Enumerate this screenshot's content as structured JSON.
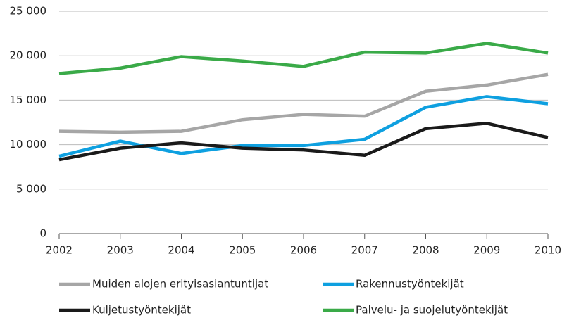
{
  "chart_data": {
    "type": "line",
    "x": [
      2002,
      2003,
      2004,
      2005,
      2006,
      2007,
      2008,
      2009,
      2010
    ],
    "xlim": [
      2002,
      2010
    ],
    "xticks": [
      2002,
      2003,
      2004,
      2005,
      2006,
      2007,
      2008,
      2009,
      2010
    ],
    "ylim": [
      0,
      25000
    ],
    "yticks": [
      0,
      {
        "value": 5000,
        "label": "5 000"
      },
      {
        "value": 10000,
        "label": "10 000"
      },
      {
        "value": 15000,
        "label": "15 000"
      },
      {
        "value": 20000,
        "label": "20 000"
      },
      {
        "value": 25000,
        "label": "25 000"
      }
    ],
    "grid": true,
    "legend": "bottom",
    "series": [
      {
        "name": "Muiden alojen erityisasiantuntijat",
        "color": "#a6a6a6",
        "values": [
          11500,
          11400,
          11500,
          12800,
          13400,
          13200,
          16000,
          16700,
          17900
        ]
      },
      {
        "name": "Rakennustyöntekijät",
        "color": "#0ea0e0",
        "values": [
          8700,
          10400,
          9000,
          9900,
          9900,
          10600,
          14200,
          15400,
          14600
        ]
      },
      {
        "name": "Kuljetustyöntekijät",
        "color": "#1a1a1a",
        "values": [
          8300,
          9600,
          10200,
          9600,
          9400,
          8800,
          11800,
          12400,
          10800
        ]
      },
      {
        "name": "Palvelu- ja suojelutyöntekijät",
        "color": "#3aaa48",
        "values": [
          18000,
          18600,
          19900,
          19400,
          18800,
          20400,
          20300,
          21400,
          20300
        ]
      }
    ]
  }
}
